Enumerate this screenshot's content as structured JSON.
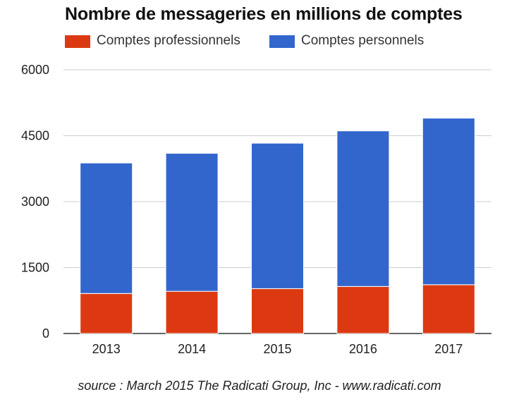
{
  "chart_data": {
    "type": "bar",
    "stacked": true,
    "title": "Nombre de messageries en millions de comptes",
    "categories": [
      "2013",
      "2014",
      "2015",
      "2016",
      "2017"
    ],
    "series": [
      {
        "name": "Comptes professionnels",
        "color": "#dc3912",
        "values": [
          910,
          960,
          1020,
          1070,
          1110
        ]
      },
      {
        "name": "Comptes personnels",
        "color": "#3366cc",
        "values": [
          2970,
          3140,
          3310,
          3540,
          3790
        ]
      }
    ],
    "xlabel": "",
    "ylabel": "",
    "ylim": [
      0,
      6000
    ],
    "yticks": [
      "0",
      "1500",
      "3000",
      "4500",
      "6000"
    ],
    "ytick_values": [
      0,
      1500,
      3000,
      4500,
      6000
    ],
    "grid": true,
    "legend_position": "top-left"
  },
  "source": "source : March 2015 The Radicati Group, Inc - www.radicati.com"
}
